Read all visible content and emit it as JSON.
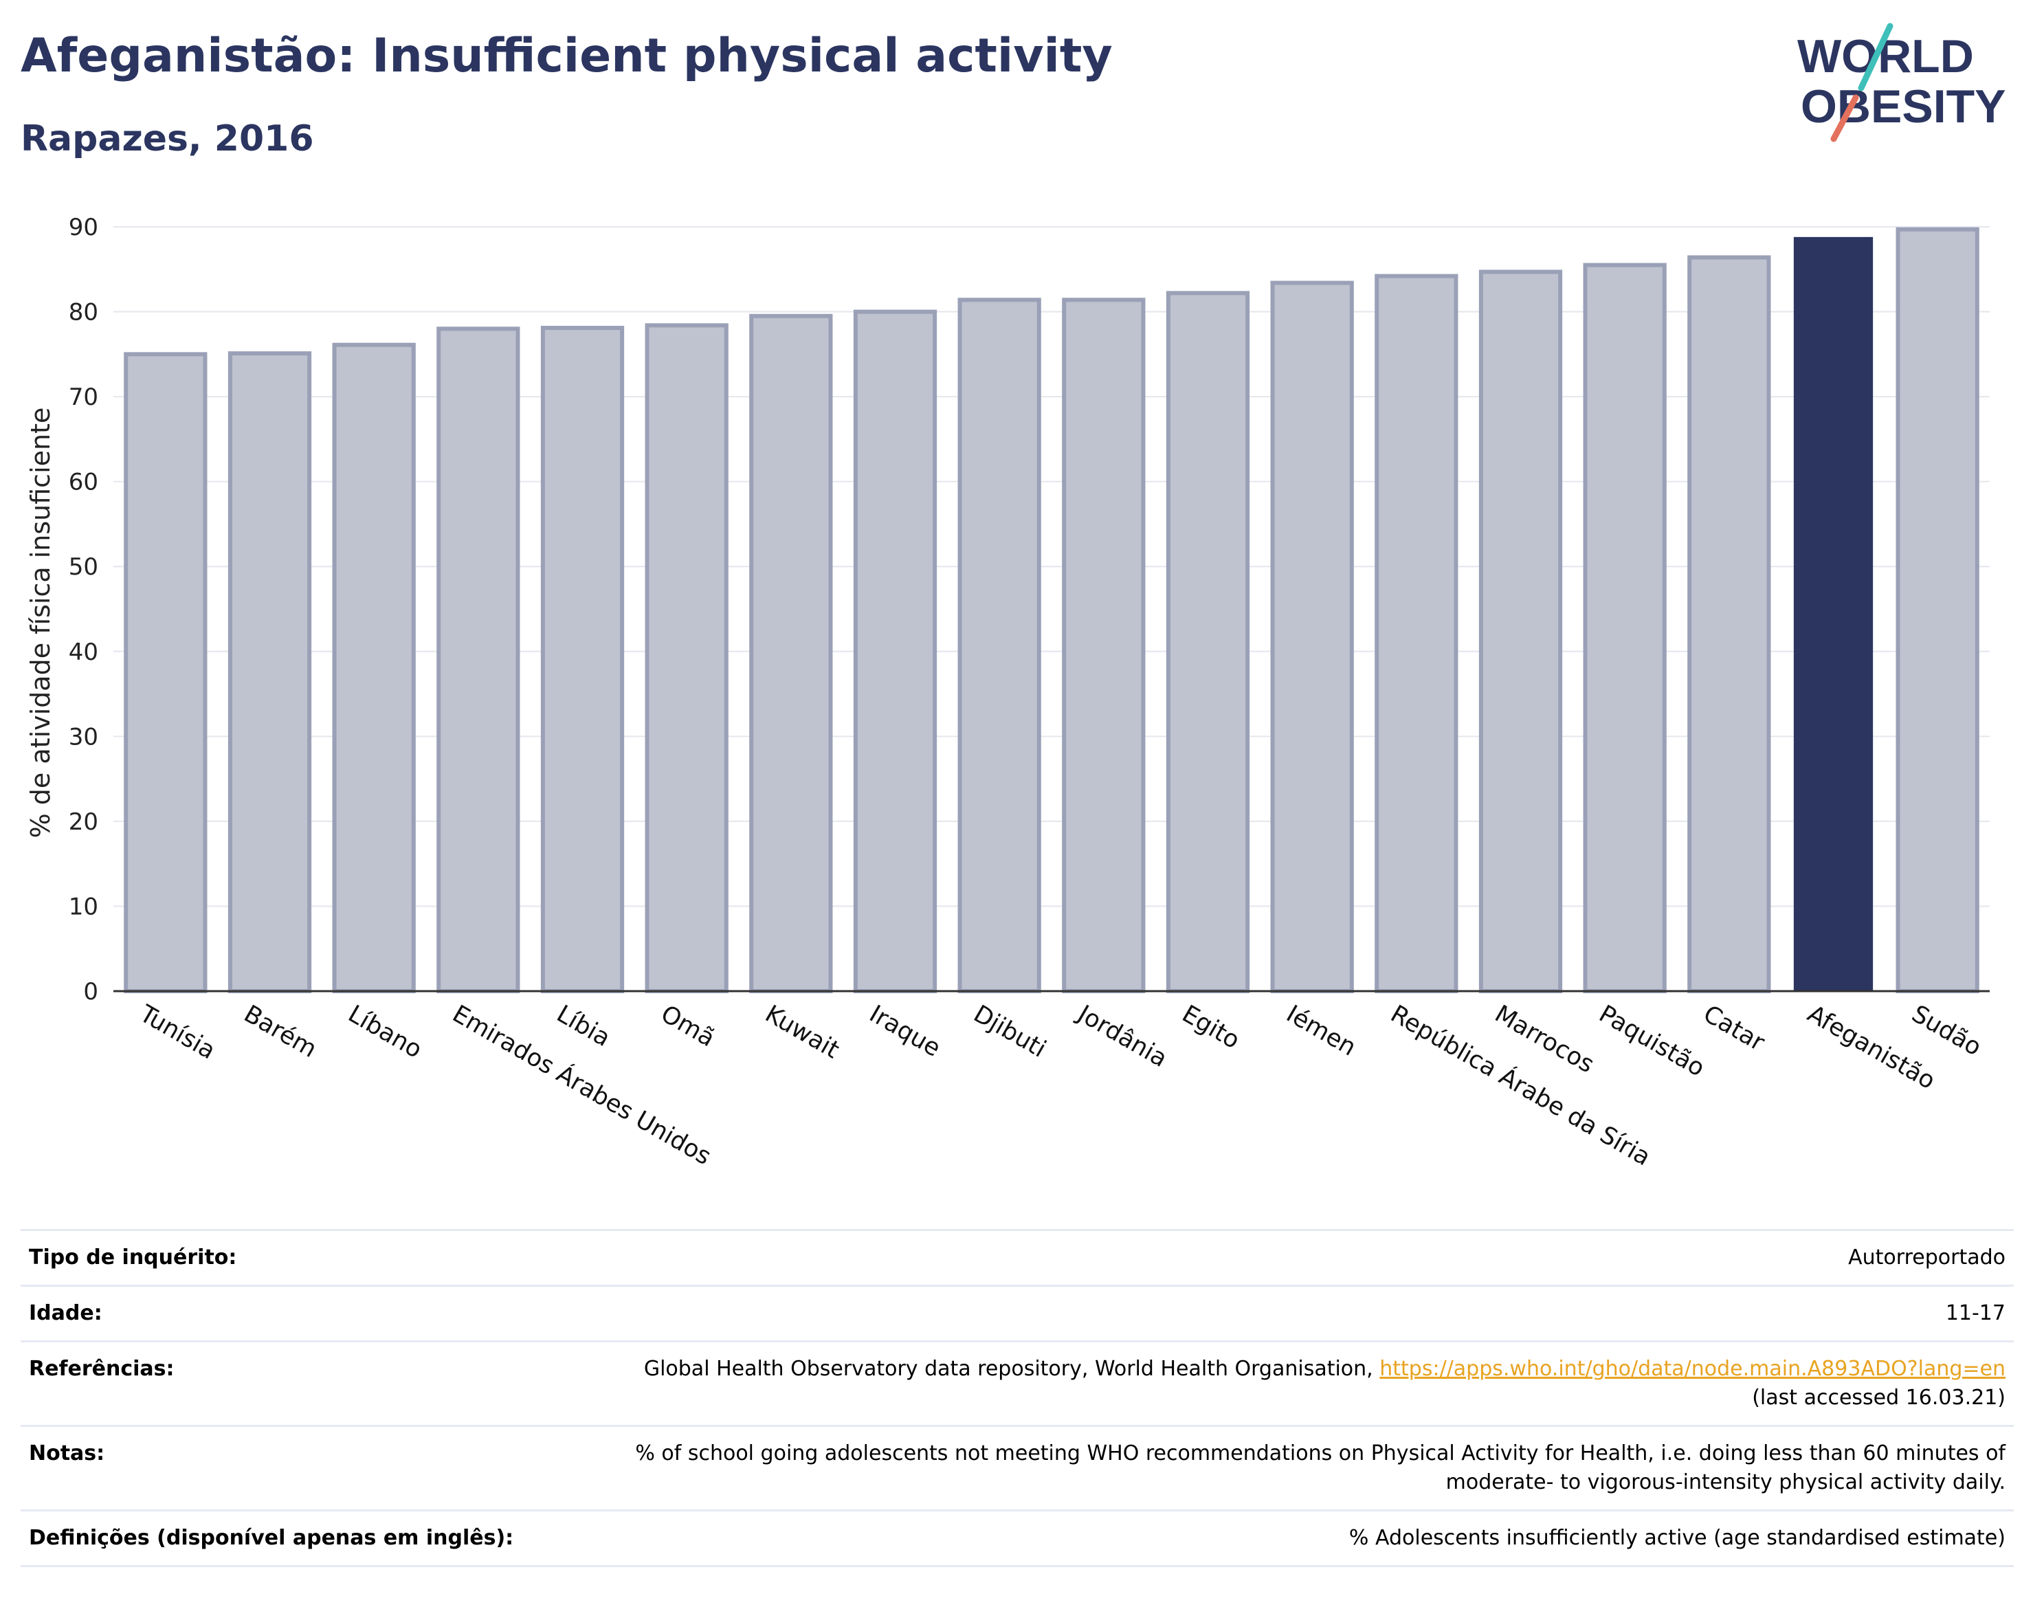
{
  "header": {
    "title": "Afeganistão: Insufficient physical activity",
    "subtitle": "Rapazes, 2016",
    "logo_text": [
      "WORLD",
      "OBESITY"
    ]
  },
  "colors": {
    "title": "#2b3560",
    "highlight_bar": "#2b3560",
    "other_bar_fill": "#bfc2cf",
    "other_bar_stroke": "#9aa0b6",
    "gridline": "#e6e6ee",
    "link": "#e8a321",
    "logo_teal": "#3ebfb9",
    "logo_coral": "#e4715d"
  },
  "chart_data": {
    "type": "bar",
    "title": "Afeganistão: Insufficient physical activity",
    "subtitle": "Rapazes, 2016",
    "xlabel": "",
    "ylabel": "% de atividade física insuficiente",
    "ylim": [
      0,
      90
    ],
    "yticks": [
      0,
      10,
      20,
      30,
      40,
      50,
      60,
      70,
      80,
      90
    ],
    "grid": true,
    "highlight": "Afeganistão",
    "categories": [
      "Tunísia",
      "Barém",
      "Líbano",
      "Emirados Árabes Unidos",
      "Líbia",
      "Omã",
      "Kuwait",
      "Iraque",
      "Djibuti",
      "Jordânia",
      "Egito",
      "Iémen",
      "República Árabe da Síria",
      "Marrocos",
      "Paquistão",
      "Catar",
      "Afeganistão",
      "Sudão"
    ],
    "values": [
      75.0,
      75.1,
      76.1,
      78.0,
      78.1,
      78.4,
      79.5,
      80.0,
      81.4,
      81.4,
      82.2,
      83.4,
      84.2,
      84.7,
      85.5,
      86.4,
      88.8,
      89.7
    ]
  },
  "meta": {
    "survey": {
      "label": "Tipo de inquérito:",
      "value": "Autorreportado"
    },
    "age": {
      "label": "Idade:",
      "value": "11-17"
    },
    "references": {
      "label": "Referências:",
      "text": "Global Health Observatory data repository, World Health Organisation,",
      "url": "https://apps.who.int/gho/data/node.main.A893ADO?lang=en",
      "accessed": "(last accessed 16.03.21)"
    },
    "notes": {
      "label": "Notas:",
      "line1": "% of school going adolescents not meeting WHO recommendations on Physical Activity for Health, i.e. doing less than 60 minutes of",
      "line2": "moderate- to vigorous-intensity physical activity daily."
    },
    "definitions": {
      "label": "Definições (disponível apenas em inglês):",
      "value": "% Adolescents insufficiently active (age standardised estimate)"
    }
  }
}
